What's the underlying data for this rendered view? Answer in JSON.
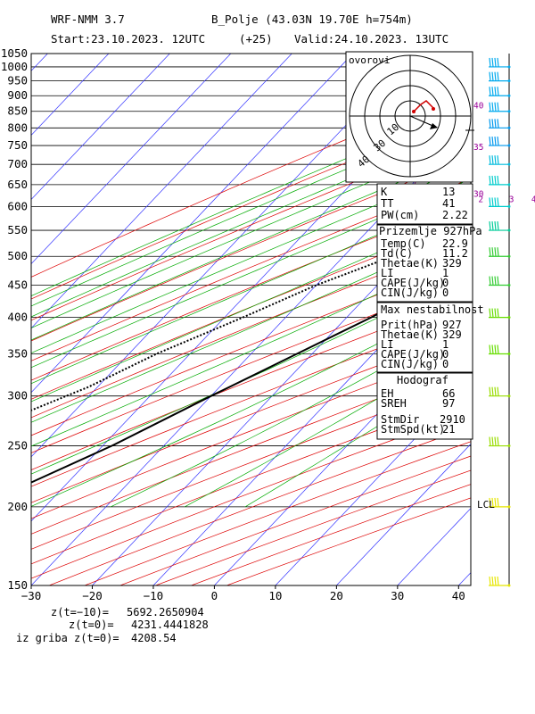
{
  "header": {
    "model": "WRF-NMM 3.7",
    "location": "B_Polje (43.03N 19.70E  h=754m)",
    "start": "Start:23.10.2023.  12UTC",
    "lead": "(+25)",
    "valid": "Valid:24.10.2023.  13UTC"
  },
  "chart_data": {
    "type": "line",
    "title": "",
    "xlabel": "",
    "ylabel": "",
    "x_ticks": [
      "−30",
      "−20",
      "−10",
      "0",
      "10",
      "20",
      "30",
      "40"
    ],
    "x_tick_values": [
      -30,
      -20,
      -10,
      0,
      10,
      20,
      30,
      40
    ],
    "pressure_levels": [
      150,
      200,
      250,
      300,
      350,
      400,
      450,
      500,
      550,
      600,
      650,
      700,
      750,
      800,
      850,
      900,
      950,
      1000,
      1050
    ],
    "ylim": [
      1050,
      150
    ],
    "xlim_at_surface": [
      -30,
      42
    ],
    "mixing_ratio_labels": [
      "0.5",
      "1",
      "2",
      "3",
      "4",
      "6",
      "8"
    ],
    "mixing_ratio_values": [
      0.5,
      1,
      2,
      3,
      4,
      6,
      8
    ],
    "parcel_labels": [
      "30",
      "35",
      "40"
    ],
    "series": [
      {
        "name": "",
        "style": "solid",
        "points": [
          [
            1000,
            28.2
          ],
          [
            950,
            26.2
          ],
          [
            900,
            23.5
          ],
          [
            850,
            19.6
          ],
          [
            800,
            17.0
          ],
          [
            750,
            13.9
          ],
          [
            700,
            10.2
          ],
          [
            650,
            6.6
          ],
          [
            600,
            2.6
          ],
          [
            550,
            -1.2
          ],
          [
            500,
            -6.0
          ],
          [
            450,
            -11.0
          ],
          [
            400,
            -16.0
          ],
          [
            350,
            -22.5
          ],
          [
            300,
            -30.0
          ],
          [
            250,
            -38.5
          ],
          [
            200,
            -51.0
          ],
          [
            180,
            -54.5
          ],
          [
            150,
            -58.0
          ]
        ]
      },
      {
        "name": "",
        "style": "dotted",
        "points": [
          [
            1000,
            14.8
          ],
          [
            950,
            13.0
          ],
          [
            920,
            12.8
          ],
          [
            900,
            10.5
          ],
          [
            850,
            8.5
          ],
          [
            800,
            4.8
          ],
          [
            750,
            -1.0
          ],
          [
            700,
            -5.6
          ],
          [
            650,
            -8.5
          ],
          [
            620,
            -7.0
          ],
          [
            600,
            -10.0
          ],
          [
            550,
            -16.0
          ],
          [
            500,
            -22.0
          ],
          [
            450,
            -30.0
          ],
          [
            400,
            -37.0
          ],
          [
            350,
            -45.5
          ],
          [
            310,
            -51.5
          ],
          [
            250,
            -66.0
          ],
          [
            200,
            -76.5
          ],
          [
            180,
            -77.0
          ],
          [
            150,
            -79.0
          ]
        ]
      }
    ],
    "winds": [
      {
        "p": 150,
        "color": "#e6e600"
      },
      {
        "p": 200,
        "color": "#e6e600"
      },
      {
        "p": 250,
        "color": "#99dd00"
      },
      {
        "p": 300,
        "color": "#99dd00"
      },
      {
        "p": 350,
        "color": "#66dd00"
      },
      {
        "p": 400,
        "color": "#66dd00"
      },
      {
        "p": 450,
        "color": "#33cc33"
      },
      {
        "p": 500,
        "color": "#33cc33"
      },
      {
        "p": 550,
        "color": "#00cc99"
      },
      {
        "p": 600,
        "color": "#00cccc"
      },
      {
        "p": 650,
        "color": "#00cccc"
      },
      {
        "p": 700,
        "color": "#00bbdd"
      },
      {
        "p": 750,
        "color": "#0099ee"
      },
      {
        "p": 800,
        "color": "#0099ee"
      },
      {
        "p": 850,
        "color": "#00aaee"
      },
      {
        "p": 900,
        "color": "#00aaee"
      },
      {
        "p": 950,
        "color": "#00aaee"
      },
      {
        "p": 1000,
        "color": "#00aaee"
      }
    ],
    "lcl_label": "LCL",
    "lcl_pressure": 793
  },
  "hodograph": {
    "title": "ovorovi",
    "ring_labels": [
      "10",
      "20",
      "30",
      "40"
    ]
  },
  "indices": {
    "rows": [
      {
        "k": "K",
        "v": "13"
      },
      {
        "k": "TT",
        "v": "41"
      },
      {
        "k": "PW(cm)",
        "v": "2.22"
      }
    ]
  },
  "surface": {
    "title": "Prizemlje  927hPa",
    "rows": [
      {
        "k": "Temp(C)",
        "v": "22.9"
      },
      {
        "k": "Td(C)",
        "v": "11.2"
      },
      {
        "k": "Thetae(K)",
        "v": "329"
      },
      {
        "k": "LI",
        "v": "1"
      },
      {
        "k": "CAPE(J/kg)",
        "v": "0"
      },
      {
        "k": "CIN(J/kg)",
        "v": "0"
      }
    ]
  },
  "max_instability": {
    "title": "Max nestabilnost",
    "rows": [
      {
        "k": "Prit(hPa)",
        "v": "927"
      },
      {
        "k": "Thetae(K)",
        "v": "329"
      },
      {
        "k": "LI",
        "v": "1"
      },
      {
        "k": "CAPE(J/kg)",
        "v": "0"
      },
      {
        "k": "CIN(J/kg)",
        "v": "0"
      }
    ]
  },
  "hodograf": {
    "title": "Hodograf",
    "rows": [
      {
        "k": "EH",
        "v": "66"
      },
      {
        "k": "SREH",
        "v": "97"
      },
      {
        "k": "StmDir",
        "v": "2910"
      },
      {
        "k": "StmSpd(kt)",
        "v": "21"
      }
    ]
  },
  "footer": {
    "line1_label": "z(t=−10)=",
    "line1_value": "5692.2650904",
    "line2_label": "z(t=0)=",
    "line2_value": "4231.4441828",
    "line3_label": "iz griba  z(t=0)=",
    "line3_value": "4208.54"
  }
}
